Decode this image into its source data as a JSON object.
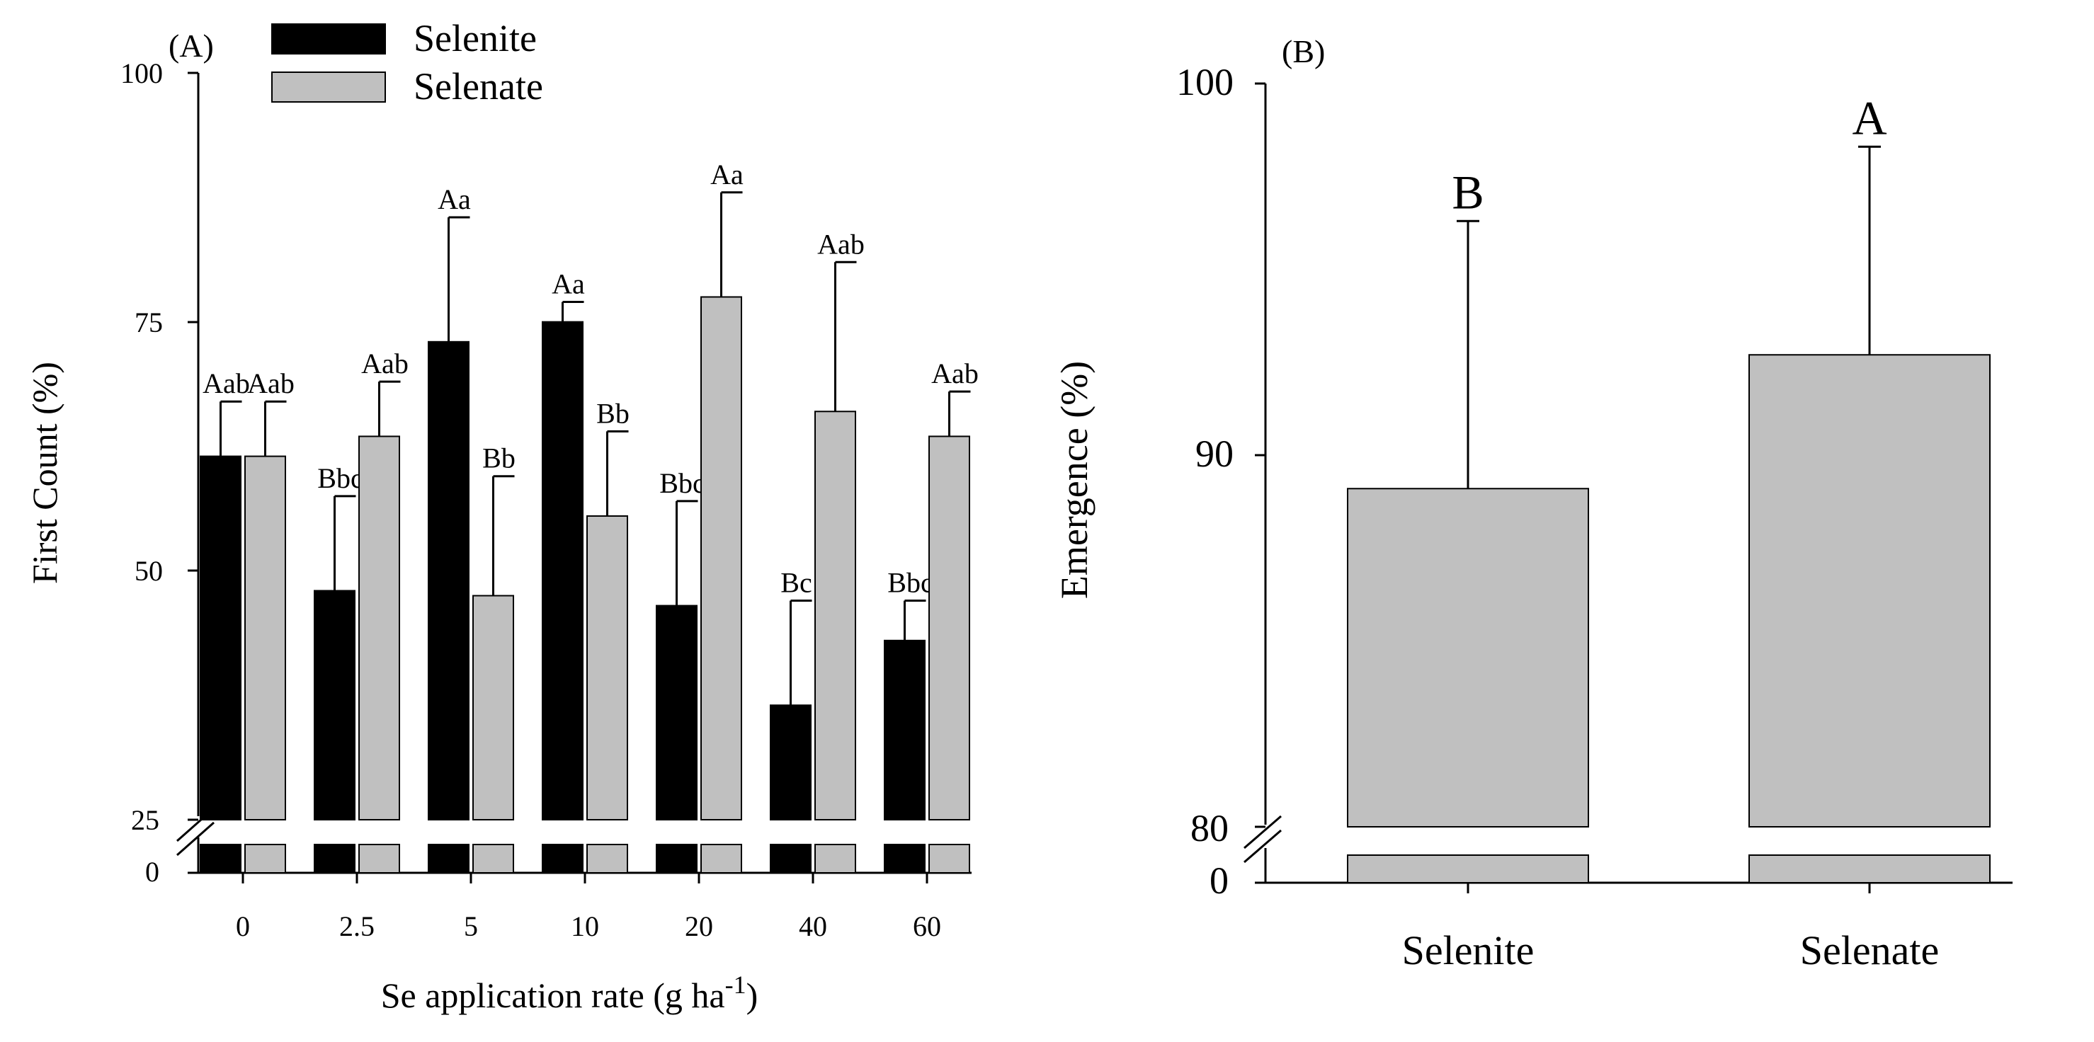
{
  "chart_data": [
    {
      "id": "A",
      "type": "bar",
      "panel_label": "(A)",
      "xlabel_main": "Se application rate (g ha",
      "xlabel_sup": "-1",
      "xlabel_tail": ")",
      "ylabel": "First Count (%)",
      "ylim": [
        25,
        100
      ],
      "axis_break": true,
      "yticks": [
        "0",
        "25",
        "50",
        "75",
        "100"
      ],
      "categories": [
        "0",
        "2.5",
        "5",
        "10",
        "20",
        "40",
        "60"
      ],
      "legend_position": "top-left",
      "series": [
        {
          "name": "Selenite",
          "color": "#000000",
          "values": [
            61.5,
            48,
            73,
            75,
            46.5,
            36.5,
            43
          ],
          "errors": [
            5.5,
            9.5,
            12.5,
            2,
            10.5,
            10.5,
            4
          ],
          "labels": [
            "Aab",
            "Bbc",
            "Aa",
            "Aa",
            "Bbc",
            "Bc",
            "Bbc"
          ]
        },
        {
          "name": "Selenate",
          "color": "#c0c0c0",
          "values": [
            61.5,
            63.5,
            47.5,
            55.5,
            77.5,
            66,
            63.5
          ],
          "errors": [
            5.5,
            5.5,
            12,
            8.5,
            10.5,
            15,
            4.5
          ],
          "labels": [
            "Aab",
            "Aab",
            "Bb",
            "Bb",
            "Aa",
            "Aab",
            "Aab"
          ]
        }
      ]
    },
    {
      "id": "B",
      "type": "bar",
      "panel_label": "(B)",
      "ylabel": "Emergence (%)",
      "ylim": [
        80,
        100
      ],
      "axis_break": true,
      "yticks": [
        "0",
        "80",
        "90",
        "100"
      ],
      "categories": [
        "Selenite",
        "Selenate"
      ],
      "color": "#c0c0c0",
      "values": [
        89.1,
        92.7
      ],
      "errors": [
        7.2,
        5.6
      ],
      "labels": [
        "B",
        "A"
      ]
    }
  ]
}
